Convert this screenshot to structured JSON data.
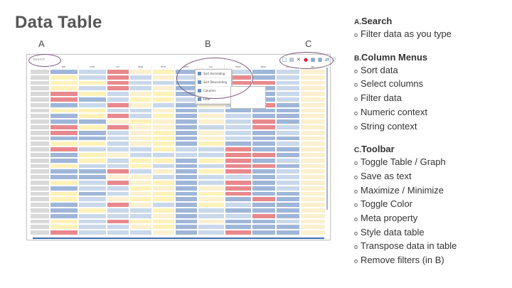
{
  "title": "Data Table",
  "markers": [
    "A",
    "B",
    "C"
  ],
  "table": {
    "search_placeholder": "Search",
    "menu_items": [
      "Sort Ascending",
      "Sort Descending",
      "Columns",
      "Filter"
    ],
    "columns": [
      "",
      "am",
      "carb",
      "cyl",
      "disp",
      "drat",
      "gear",
      "hp",
      "mpg",
      "qsec",
      "vs",
      "wt"
    ]
  },
  "sections": [
    {
      "prefix": "A.",
      "title": "Search",
      "items": [
        "Filter data as you type"
      ]
    },
    {
      "prefix": "B.",
      "title": "Column Menus",
      "items": [
        "Sort data",
        "Select columns",
        "Filter data",
        "Numeric context",
        "String context"
      ]
    },
    {
      "prefix": "C.",
      "title": "Toolbar",
      "items": [
        "Toggle Table / Graph",
        "Save as text",
        "Maximize / Minimize",
        "Toggle Color",
        "Meta property",
        "Style data table",
        "Transpose data in table",
        "Remove filters (in B)"
      ]
    }
  ],
  "colors": {
    "blue": "#9fb6d8",
    "lightblue": "#c9d8ea",
    "red": "#e8898d",
    "yellow": "#fff2b8",
    "lightyellow": "#fbf0cf"
  }
}
